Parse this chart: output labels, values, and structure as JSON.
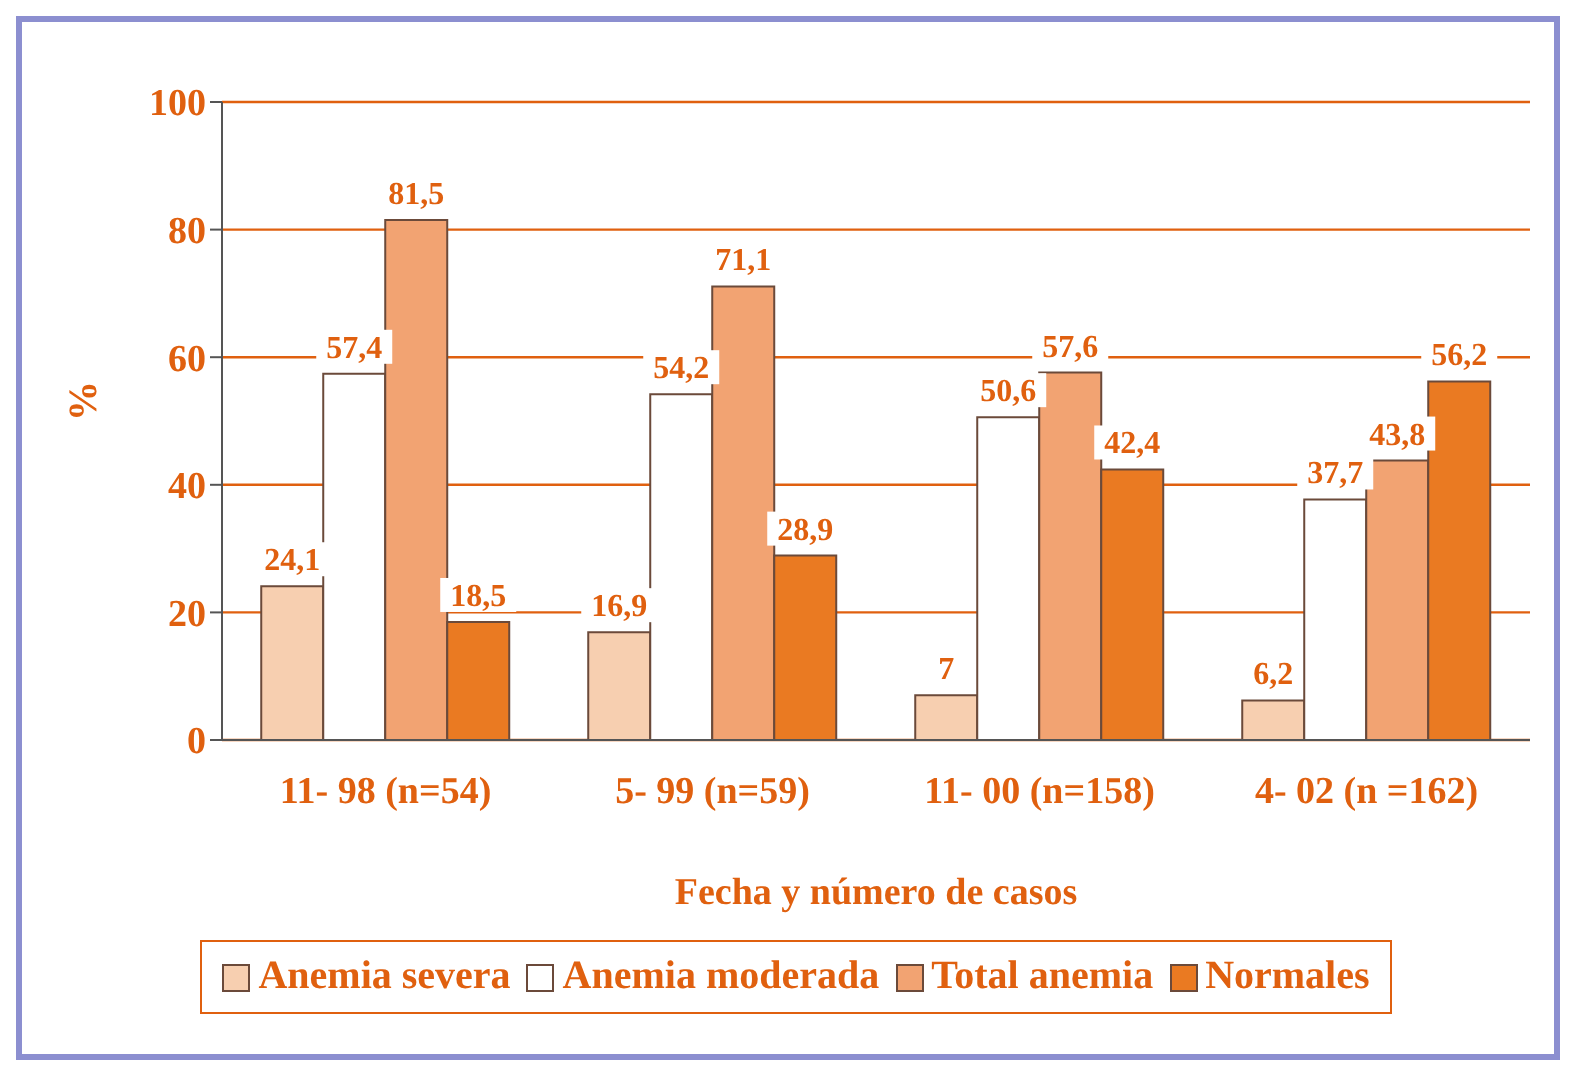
{
  "chart_data": {
    "type": "bar",
    "xlabel": "Fecha y número de casos",
    "ylabel": "%",
    "categories": [
      "11- 98 (n=54)",
      "5- 99 (n=59)",
      "11- 00 (n=158)",
      "4- 02 (n =162)"
    ],
    "series": [
      {
        "name": "Anemia severa",
        "color": "#f7cfb0",
        "values": [
          24.1,
          16.9,
          7,
          6.2
        ],
        "value_labels": [
          "24,1",
          "16,9",
          "7",
          "6,2"
        ]
      },
      {
        "name": "Anemia moderada",
        "color": "#ffffff",
        "values": [
          57.4,
          54.2,
          50.6,
          37.7
        ],
        "value_labels": [
          "57,4",
          "54,2",
          "50,6",
          "37,7"
        ]
      },
      {
        "name": "Total anemia",
        "color": "#f2a372",
        "values": [
          81.5,
          71.1,
          57.6,
          43.8
        ],
        "value_labels": [
          "81,5",
          "71,1",
          "57,6",
          "43,8"
        ]
      },
      {
        "name": "Normales",
        "color": "#ea7a22",
        "values": [
          18.5,
          28.9,
          42.4,
          56.2
        ],
        "value_labels": [
          "18,5",
          "28,9",
          "42,4",
          "56,2"
        ]
      }
    ],
    "ylim": [
      0,
      100
    ],
    "yticks": [
      0,
      20,
      40,
      60,
      80,
      100
    ],
    "grid": "y",
    "legend": "bottom"
  }
}
